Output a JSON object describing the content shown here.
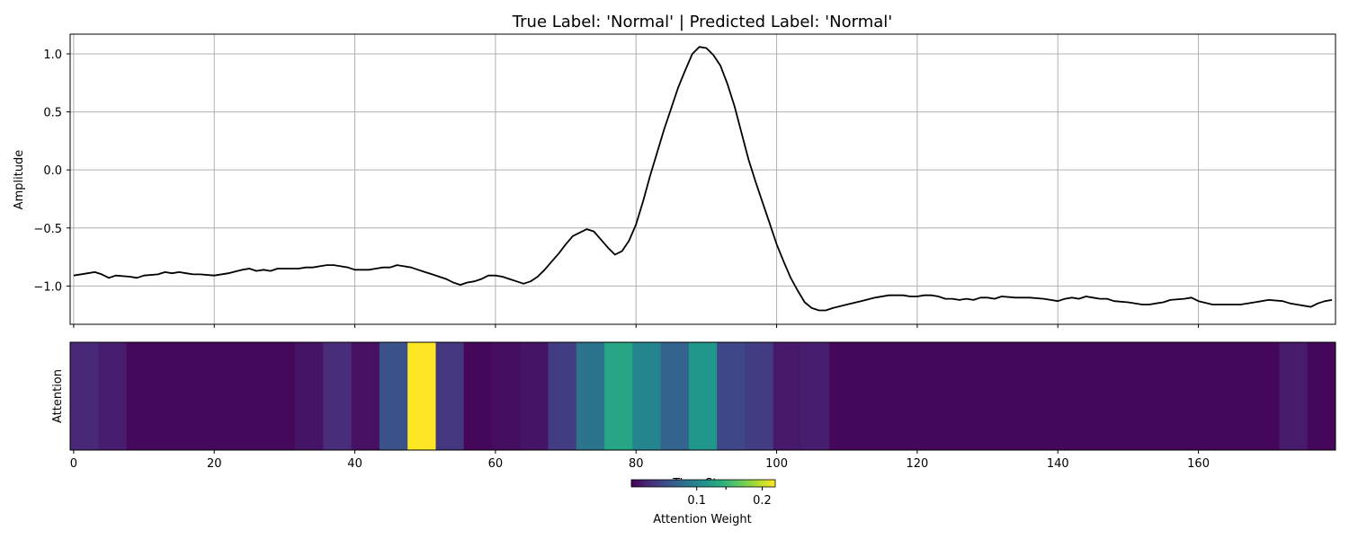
{
  "chart_data": [
    {
      "type": "line",
      "title": "True Label: 'Normal' | Predicted Label: 'Normal'",
      "xlabel": "",
      "ylabel": "Amplitude",
      "xlim": [
        -0.5,
        179.5
      ],
      "ylim": [
        -1.33,
        1.17
      ],
      "grid": true,
      "line_color": "#000000",
      "grid_color": "#b0b0b0",
      "x_ticks": [
        0,
        20,
        40,
        60,
        80,
        100,
        120,
        140,
        160
      ],
      "y_ticks": [
        1.0,
        0.5,
        0.0,
        -0.5,
        -1.0
      ],
      "y_tick_labels": [
        "1.0",
        "0.5",
        "0.0",
        "−0.5",
        "−1.0"
      ],
      "series": [
        {
          "points": [
            [
              0,
              -0.91
            ],
            [
              2,
              -0.89
            ],
            [
              3,
              -0.88
            ],
            [
              4,
              -0.9
            ],
            [
              5,
              -0.93
            ],
            [
              6,
              -0.91
            ],
            [
              8,
              -0.92
            ],
            [
              9,
              -0.93
            ],
            [
              10,
              -0.91
            ],
            [
              12,
              -0.9
            ],
            [
              13,
              -0.88
            ],
            [
              14,
              -0.89
            ],
            [
              15,
              -0.88
            ],
            [
              16,
              -0.89
            ],
            [
              17,
              -0.9
            ],
            [
              18,
              -0.9
            ],
            [
              20,
              -0.91
            ],
            [
              22,
              -0.89
            ],
            [
              24,
              -0.86
            ],
            [
              25,
              -0.85
            ],
            [
              26,
              -0.87
            ],
            [
              27,
              -0.86
            ],
            [
              28,
              -0.87
            ],
            [
              29,
              -0.85
            ],
            [
              30,
              -0.85
            ],
            [
              31,
              -0.85
            ],
            [
              32,
              -0.85
            ],
            [
              33,
              -0.84
            ],
            [
              34,
              -0.84
            ],
            [
              35,
              -0.83
            ],
            [
              36,
              -0.82
            ],
            [
              37,
              -0.82
            ],
            [
              38,
              -0.83
            ],
            [
              39,
              -0.84
            ],
            [
              40,
              -0.86
            ],
            [
              42,
              -0.86
            ],
            [
              43,
              -0.85
            ],
            [
              44,
              -0.84
            ],
            [
              45,
              -0.84
            ],
            [
              46,
              -0.82
            ],
            [
              47,
              -0.83
            ],
            [
              48,
              -0.84
            ],
            [
              49,
              -0.86
            ],
            [
              50,
              -0.88
            ],
            [
              51,
              -0.9
            ],
            [
              52,
              -0.92
            ],
            [
              53,
              -0.94
            ],
            [
              54,
              -0.97
            ],
            [
              55,
              -0.99
            ],
            [
              56,
              -0.97
            ],
            [
              57,
              -0.96
            ],
            [
              58,
              -0.94
            ],
            [
              59,
              -0.91
            ],
            [
              60,
              -0.91
            ],
            [
              61,
              -0.92
            ],
            [
              62,
              -0.94
            ],
            [
              63,
              -0.96
            ],
            [
              64,
              -0.98
            ],
            [
              65,
              -0.96
            ],
            [
              66,
              -0.92
            ],
            [
              67,
              -0.86
            ],
            [
              68,
              -0.79
            ],
            [
              69,
              -0.72
            ],
            [
              70,
              -0.64
            ],
            [
              71,
              -0.57
            ],
            [
              72,
              -0.54
            ],
            [
              73,
              -0.51
            ],
            [
              74,
              -0.53
            ],
            [
              75,
              -0.6
            ],
            [
              76,
              -0.67
            ],
            [
              77,
              -0.73
            ],
            [
              78,
              -0.7
            ],
            [
              79,
              -0.61
            ],
            [
              80,
              -0.47
            ],
            [
              81,
              -0.27
            ],
            [
              82,
              -0.05
            ],
            [
              83,
              0.15
            ],
            [
              84,
              0.35
            ],
            [
              85,
              0.53
            ],
            [
              86,
              0.71
            ],
            [
              87,
              0.86
            ],
            [
              88,
              1.0
            ],
            [
              89,
              1.06
            ],
            [
              90,
              1.05
            ],
            [
              91,
              0.99
            ],
            [
              92,
              0.9
            ],
            [
              93,
              0.74
            ],
            [
              94,
              0.55
            ],
            [
              95,
              0.32
            ],
            [
              96,
              0.09
            ],
            [
              97,
              -0.1
            ],
            [
              98,
              -0.28
            ],
            [
              99,
              -0.46
            ],
            [
              100,
              -0.64
            ],
            [
              101,
              -0.79
            ],
            [
              102,
              -0.93
            ],
            [
              103,
              -1.04
            ],
            [
              104,
              -1.14
            ],
            [
              105,
              -1.19
            ],
            [
              106,
              -1.21
            ],
            [
              107,
              -1.21
            ],
            [
              108,
              -1.19
            ],
            [
              110,
              -1.16
            ],
            [
              112,
              -1.13
            ],
            [
              114,
              -1.1
            ],
            [
              116,
              -1.08
            ],
            [
              118,
              -1.08
            ],
            [
              119,
              -1.09
            ],
            [
              120,
              -1.09
            ],
            [
              121,
              -1.08
            ],
            [
              122,
              -1.08
            ],
            [
              123,
              -1.09
            ],
            [
              124,
              -1.11
            ],
            [
              125,
              -1.11
            ],
            [
              126,
              -1.12
            ],
            [
              127,
              -1.11
            ],
            [
              128,
              -1.12
            ],
            [
              129,
              -1.1
            ],
            [
              130,
              -1.1
            ],
            [
              131,
              -1.11
            ],
            [
              132,
              -1.09
            ],
            [
              134,
              -1.1
            ],
            [
              136,
              -1.1
            ],
            [
              138,
              -1.11
            ],
            [
              139,
              -1.12
            ],
            [
              140,
              -1.13
            ],
            [
              141,
              -1.11
            ],
            [
              142,
              -1.1
            ],
            [
              143,
              -1.11
            ],
            [
              144,
              -1.09
            ],
            [
              145,
              -1.1
            ],
            [
              146,
              -1.11
            ],
            [
              147,
              -1.11
            ],
            [
              148,
              -1.13
            ],
            [
              150,
              -1.14
            ],
            [
              152,
              -1.16
            ],
            [
              153,
              -1.16
            ],
            [
              154,
              -1.15
            ],
            [
              155,
              -1.14
            ],
            [
              156,
              -1.12
            ],
            [
              158,
              -1.11
            ],
            [
              159,
              -1.1
            ],
            [
              160,
              -1.13
            ],
            [
              162,
              -1.16
            ],
            [
              164,
              -1.16
            ],
            [
              166,
              -1.16
            ],
            [
              168,
              -1.14
            ],
            [
              170,
              -1.12
            ],
            [
              172,
              -1.13
            ],
            [
              173,
              -1.15
            ],
            [
              174,
              -1.16
            ],
            [
              175,
              -1.17
            ],
            [
              176,
              -1.18
            ],
            [
              177,
              -1.15
            ],
            [
              178,
              -1.13
            ],
            [
              179,
              -1.12
            ]
          ]
        }
      ]
    },
    {
      "type": "heatmap",
      "ylabel": "Attention",
      "xlabel": "Time Step",
      "xlim": [
        -0.5,
        179.5
      ],
      "x_ticks": [
        0,
        20,
        40,
        60,
        80,
        100,
        120,
        140,
        160
      ],
      "colormap": "viridis",
      "vmin": 0.0,
      "vmax": 0.22,
      "segments": [
        {
          "x0": -0.5,
          "x1": 3.5,
          "value": 0.025
        },
        {
          "x0": 3.5,
          "x1": 7.5,
          "value": 0.018
        },
        {
          "x0": 7.5,
          "x1": 31.5,
          "value": 0.005
        },
        {
          "x0": 31.5,
          "x1": 35.5,
          "value": 0.012
        },
        {
          "x0": 35.5,
          "x1": 39.5,
          "value": 0.028
        },
        {
          "x0": 39.5,
          "x1": 43.5,
          "value": 0.01
        },
        {
          "x0": 43.5,
          "x1": 47.5,
          "value": 0.055
        },
        {
          "x0": 47.5,
          "x1": 51.5,
          "value": 0.22
        },
        {
          "x0": 51.5,
          "x1": 55.5,
          "value": 0.035
        },
        {
          "x0": 55.5,
          "x1": 59.5,
          "value": 0.004
        },
        {
          "x0": 59.5,
          "x1": 63.5,
          "value": 0.008
        },
        {
          "x0": 63.5,
          "x1": 67.5,
          "value": 0.012
        },
        {
          "x0": 67.5,
          "x1": 71.5,
          "value": 0.04
        },
        {
          "x0": 71.5,
          "x1": 75.5,
          "value": 0.085
        },
        {
          "x0": 75.5,
          "x1": 79.5,
          "value": 0.13
        },
        {
          "x0": 79.5,
          "x1": 83.5,
          "value": 0.1
        },
        {
          "x0": 83.5,
          "x1": 87.5,
          "value": 0.07
        },
        {
          "x0": 87.5,
          "x1": 91.5,
          "value": 0.115
        },
        {
          "x0": 91.5,
          "x1": 95.5,
          "value": 0.048
        },
        {
          "x0": 95.5,
          "x1": 99.5,
          "value": 0.04
        },
        {
          "x0": 99.5,
          "x1": 103.5,
          "value": 0.015
        },
        {
          "x0": 103.5,
          "x1": 107.5,
          "value": 0.018
        },
        {
          "x0": 107.5,
          "x1": 171.5,
          "value": 0.004
        },
        {
          "x0": 171.5,
          "x1": 175.5,
          "value": 0.016
        },
        {
          "x0": 175.5,
          "x1": 179.5,
          "value": 0.004
        }
      ],
      "colorbar": {
        "label": "Attention Weight",
        "ticks": [
          0.1,
          0.2
        ],
        "tick_labels": [
          "0.1",
          "0.2"
        ]
      }
    }
  ]
}
